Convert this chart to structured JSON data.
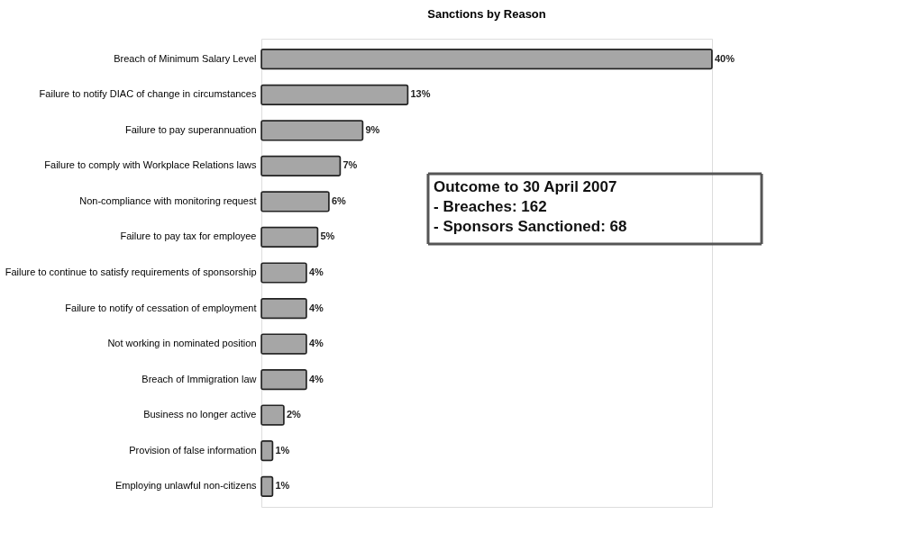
{
  "chart_data": {
    "type": "bar",
    "orientation": "horizontal",
    "title": "Sanctions by Reason",
    "categories": [
      "Breach of Minimum Salary Level",
      "Failure to notify DIAC of change in circumstances",
      "Failure to pay superannuation",
      "Failure to comply with Workplace Relations laws",
      "Non-compliance with monitoring request",
      "Failure to pay tax for employee",
      "Failure to continue to satisfy requirements of sponsorship",
      "Failure to notify of cessation of employment",
      "Not working in nominated position",
      "Breach of Immigration law",
      "Business no longer active",
      "Provision of false information",
      "Employing unlawful non-citizens"
    ],
    "values": [
      40,
      13,
      9,
      7,
      6,
      5,
      4,
      4,
      4,
      4,
      2,
      1,
      1
    ],
    "value_labels": [
      "40%",
      "13%",
      "9%",
      "7%",
      "6%",
      "5%",
      "4%",
      "4%",
      "4%",
      "4%",
      "2%",
      "1%",
      "1%"
    ],
    "color": "#a6a6a6",
    "annotations": [
      "Outcome to 30 April 2007",
      "  - Breaches: 162",
      "  - Sponsors Sanctioned: 68"
    ],
    "grid": false
  }
}
